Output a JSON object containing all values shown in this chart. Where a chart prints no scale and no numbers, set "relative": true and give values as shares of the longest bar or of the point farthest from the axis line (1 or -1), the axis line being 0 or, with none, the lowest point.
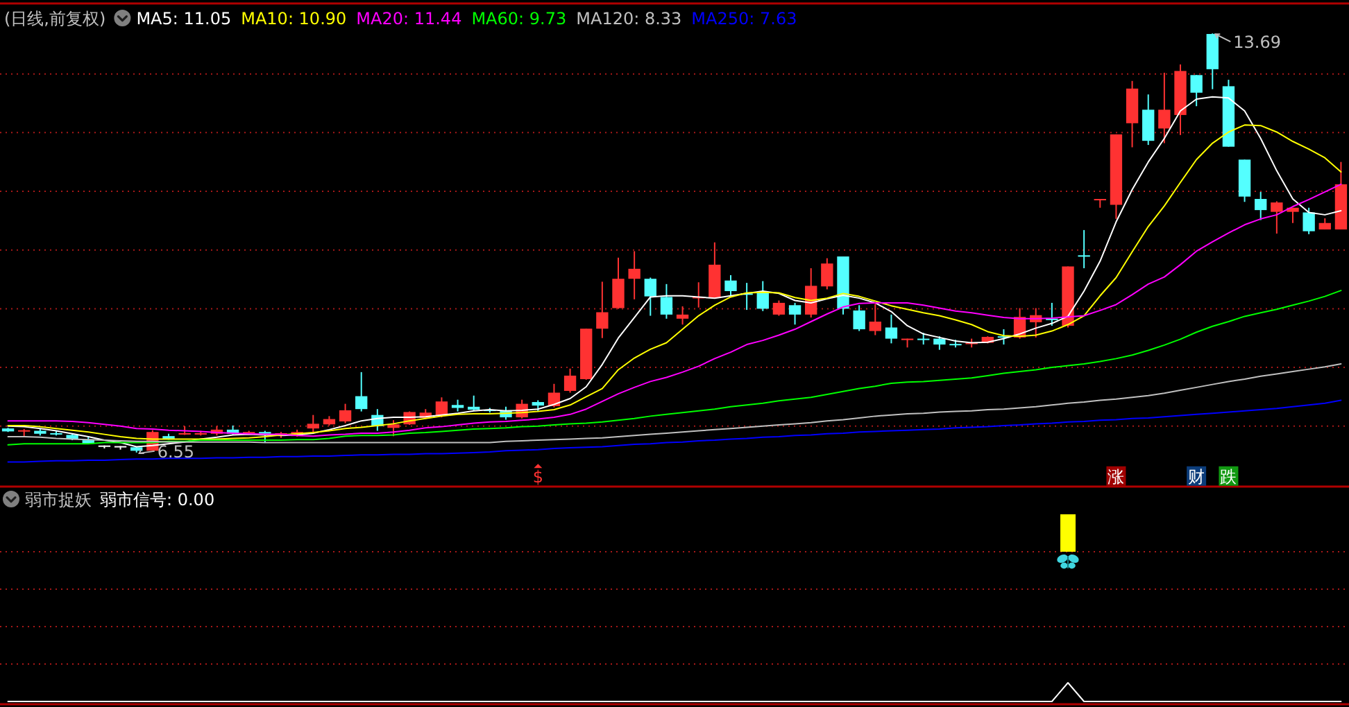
{
  "chart_data": [
    {
      "type": "candlestick",
      "title": "(日线,前复权)",
      "legend": "top left",
      "grid": "y",
      "categories": [
        null,
        null,
        null,
        null,
        null,
        null,
        null,
        null,
        null,
        null,
        null,
        null,
        null,
        null,
        null,
        null,
        null,
        null,
        null,
        null,
        null,
        null,
        null,
        null,
        null,
        null,
        null,
        null,
        null,
        null,
        null,
        null,
        null,
        null,
        null,
        null,
        null,
        null,
        null,
        null,
        null,
        null,
        null,
        null,
        null,
        null,
        null,
        null,
        null,
        null,
        null,
        null,
        null,
        null,
        null,
        null,
        null,
        null,
        null,
        null,
        null,
        null,
        null,
        null,
        null,
        null,
        null,
        null,
        null,
        null,
        null,
        null,
        null,
        null,
        null,
        null,
        null,
        null,
        null,
        null,
        null,
        null,
        null,
        null
      ],
      "ylim": [
        5.97,
        14.2
      ],
      "yticks": [
        {
          "value": 7,
          "label": null
        },
        {
          "value": 8,
          "label": null
        },
        {
          "value": 9,
          "label": null
        },
        {
          "value": 10,
          "label": null
        },
        {
          "value": 11,
          "label": null
        },
        {
          "value": 12,
          "label": null
        },
        {
          "value": 13,
          "label": null
        }
      ],
      "ohlc": [
        [
          6.96,
          6.97,
          6.9,
          6.91
        ],
        [
          6.92,
          6.95,
          6.83,
          6.93
        ],
        [
          6.92,
          6.95,
          6.84,
          6.87
        ],
        [
          6.88,
          6.92,
          6.84,
          6.87
        ],
        [
          6.85,
          6.87,
          6.76,
          6.78
        ],
        [
          6.76,
          6.83,
          6.69,
          6.7
        ],
        [
          6.67,
          6.67,
          6.62,
          6.67
        ],
        [
          6.66,
          6.66,
          6.6,
          6.66
        ],
        [
          6.64,
          6.65,
          6.55,
          6.58
        ],
        [
          6.58,
          6.93,
          6.58,
          6.9
        ],
        [
          6.83,
          6.87,
          6.77,
          6.78
        ],
        [
          6.87,
          7.0,
          6.85,
          6.88
        ],
        [
          6.87,
          6.92,
          6.84,
          6.88
        ],
        [
          6.87,
          7.0,
          6.84,
          6.94
        ],
        [
          6.94,
          7.01,
          6.86,
          6.87
        ],
        [
          6.87,
          6.92,
          6.86,
          6.9
        ],
        [
          6.9,
          6.92,
          6.72,
          6.87
        ],
        [
          6.87,
          6.9,
          6.8,
          6.88
        ],
        [
          6.83,
          6.94,
          6.82,
          6.9
        ],
        [
          6.96,
          7.19,
          6.88,
          7.04
        ],
        [
          7.03,
          7.17,
          7.01,
          7.12
        ],
        [
          7.08,
          7.38,
          7.05,
          7.27
        ],
        [
          7.51,
          7.92,
          7.25,
          7.29
        ],
        [
          7.19,
          7.29,
          6.92,
          7.0
        ],
        [
          6.97,
          7.1,
          6.83,
          7.03
        ],
        [
          7.03,
          7.25,
          7.02,
          7.24
        ],
        [
          7.14,
          7.29,
          7.12,
          7.23
        ],
        [
          7.18,
          7.49,
          7.15,
          7.42
        ],
        [
          7.36,
          7.45,
          7.25,
          7.31
        ],
        [
          7.33,
          7.52,
          7.27,
          7.28
        ],
        [
          7.28,
          7.31,
          7.23,
          7.27
        ],
        [
          7.27,
          7.33,
          7.11,
          7.15
        ],
        [
          7.15,
          7.45,
          7.13,
          7.38
        ],
        [
          7.41,
          7.44,
          7.25,
          7.35
        ],
        [
          7.34,
          7.72,
          7.32,
          7.57
        ],
        [
          7.6,
          7.98,
          7.57,
          7.86
        ],
        [
          7.8,
          8.66,
          7.79,
          8.66
        ],
        [
          8.66,
          9.46,
          8.5,
          8.94
        ],
        [
          9.01,
          9.87,
          9.0,
          9.51
        ],
        [
          9.51,
          9.98,
          9.16,
          9.68
        ],
        [
          9.51,
          9.53,
          8.88,
          9.21
        ],
        [
          9.2,
          9.42,
          8.83,
          8.9
        ],
        [
          8.83,
          9.04,
          8.73,
          8.9
        ],
        [
          9.18,
          9.45,
          9.02,
          9.2
        ],
        [
          9.18,
          10.13,
          9.18,
          9.75
        ],
        [
          9.48,
          9.57,
          9.22,
          9.3
        ],
        [
          9.26,
          9.44,
          8.98,
          9.25
        ],
        [
          9.27,
          9.47,
          8.96,
          9.0
        ],
        [
          8.9,
          9.14,
          8.88,
          9.1
        ],
        [
          9.06,
          9.1,
          8.73,
          8.9
        ],
        [
          8.9,
          9.69,
          8.85,
          9.39
        ],
        [
          9.38,
          9.86,
          9.33,
          9.77
        ],
        [
          9.89,
          9.89,
          8.9,
          9.0
        ],
        [
          8.97,
          9.06,
          8.62,
          8.65
        ],
        [
          8.62,
          9.08,
          8.55,
          8.78
        ],
        [
          8.68,
          8.9,
          8.41,
          8.49
        ],
        [
          8.48,
          8.49,
          8.34,
          8.49
        ],
        [
          8.49,
          8.59,
          8.39,
          8.48
        ],
        [
          8.49,
          8.53,
          8.3,
          8.39
        ],
        [
          8.4,
          8.47,
          8.34,
          8.39
        ],
        [
          8.4,
          8.49,
          8.34,
          8.42
        ],
        [
          8.42,
          8.53,
          8.41,
          8.52
        ],
        [
          8.53,
          8.65,
          8.39,
          8.52
        ],
        [
          8.51,
          9.01,
          8.49,
          8.86
        ],
        [
          8.77,
          9.01,
          8.51,
          8.89
        ],
        [
          8.83,
          9.1,
          8.71,
          8.82
        ],
        [
          8.71,
          9.72,
          8.68,
          9.72
        ],
        [
          9.91,
          10.34,
          9.69,
          9.9
        ],
        [
          10.86,
          10.87,
          10.72,
          10.87
        ],
        [
          10.77,
          11.97,
          10.53,
          11.97
        ],
        [
          12.16,
          12.88,
          11.75,
          12.75
        ],
        [
          12.39,
          12.65,
          11.79,
          11.86
        ],
        [
          12.07,
          13.02,
          11.82,
          12.39
        ],
        [
          12.3,
          13.16,
          11.96,
          13.05
        ],
        [
          12.98,
          12.98,
          12.45,
          12.68
        ],
        [
          13.68,
          13.69,
          12.74,
          13.08
        ],
        [
          12.79,
          12.9,
          11.76,
          11.76
        ],
        [
          11.54,
          11.54,
          10.82,
          10.91
        ],
        [
          10.87,
          10.99,
          10.51,
          10.68
        ],
        [
          10.65,
          10.83,
          10.28,
          10.81
        ],
        [
          10.65,
          10.72,
          10.46,
          10.72
        ],
        [
          10.64,
          10.72,
          10.27,
          10.32
        ],
        [
          10.35,
          10.54,
          10.35,
          10.46
        ],
        [
          10.35,
          11.5,
          10.35,
          11.12
        ]
      ],
      "colors": [
        "#54ffff",
        "#ff3232",
        "#54ffff",
        "#54ffff",
        "#54ffff",
        "#54ffff",
        "#ffffff",
        "#ffffff",
        "#54ffff",
        "#ff3232",
        "#54ffff",
        "#ff3232",
        "#ff3232",
        "#ff3232",
        "#54ffff",
        "#ff3232",
        "#54ffff",
        "#ff3232",
        "#ff3232",
        "#ff3232",
        "#ff3232",
        "#ff3232",
        "#54ffff",
        "#54ffff",
        "#ff3232",
        "#ff3232",
        "#ff3232",
        "#ff3232",
        "#54ffff",
        "#54ffff",
        "#54ffff",
        "#54ffff",
        "#ff3232",
        "#54ffff",
        "#ff3232",
        "#ff3232",
        "#ff3232",
        "#ff3232",
        "#ff3232",
        "#ff3232",
        "#54ffff",
        "#54ffff",
        "#ff3232",
        "#ff3232",
        "#ff3232",
        "#54ffff",
        "#54ffff",
        "#54ffff",
        "#ff3232",
        "#54ffff",
        "#ff3232",
        "#ff3232",
        "#54ffff",
        "#54ffff",
        "#ff3232",
        "#54ffff",
        "#ff3232",
        "#54ffff",
        "#54ffff",
        "#54ffff",
        "#ff3232",
        "#ff3232",
        "#54ffff",
        "#ff3232",
        "#ff3232",
        "#54ffff",
        "#ff3232",
        "#54ffff",
        "#ff3232",
        "#ff3232",
        "#ff3232",
        "#54ffff",
        "#ff3232",
        "#ff3232",
        "#54ffff",
        "#54ffff",
        "#54ffff",
        "#54ffff",
        "#54ffff",
        "#ff3232",
        "#ff3232",
        "#54ffff",
        "#ff3232",
        "#ff3232"
      ],
      "annotations": [
        "13.69",
        "6.55"
      ],
      "series": [
        {
          "type": "line",
          "name": "MA5: 11.05",
          "color": "#ffffff",
          "values": [
            7.0,
            6.99,
            6.96,
            6.92,
            6.87,
            6.82,
            6.76,
            6.72,
            6.65,
            6.67,
            6.7,
            6.73,
            6.78,
            6.81,
            6.85,
            6.86,
            6.85,
            6.84,
            6.85,
            6.88,
            6.94,
            7.01,
            7.09,
            7.13,
            7.15,
            7.15,
            7.16,
            7.19,
            7.22,
            7.26,
            7.28,
            7.26,
            7.27,
            7.29,
            7.37,
            7.47,
            7.67,
            8.05,
            8.5,
            8.85,
            9.2,
            9.22,
            9.22,
            9.2,
            9.18,
            9.22,
            9.26,
            9.3,
            9.26,
            9.14,
            9.1,
            9.17,
            9.23,
            9.18,
            9.1,
            8.95,
            8.71,
            8.57,
            8.51,
            8.45,
            8.42,
            8.43,
            8.49,
            8.57,
            8.67,
            8.75,
            8.87,
            9.3,
            9.81,
            10.48,
            11.03,
            11.5,
            11.9,
            12.37,
            12.57,
            12.61,
            12.59,
            12.37,
            11.9,
            11.35,
            10.87,
            10.64,
            10.6,
            10.67
          ]
        },
        {
          "type": "line",
          "name": "MA10: 10.90",
          "color": "#ffff00",
          "values": [
            7.01,
            7.01,
            6.99,
            6.96,
            6.93,
            6.9,
            6.86,
            6.82,
            6.79,
            6.78,
            6.78,
            6.78,
            6.78,
            6.78,
            6.79,
            6.8,
            6.82,
            6.85,
            6.87,
            6.89,
            6.92,
            6.96,
            6.98,
            7.01,
            7.04,
            7.09,
            7.13,
            7.17,
            7.2,
            7.21,
            7.21,
            7.22,
            7.23,
            7.25,
            7.28,
            7.36,
            7.5,
            7.64,
            7.96,
            8.16,
            8.31,
            8.42,
            8.65,
            8.88,
            9.06,
            9.2,
            9.27,
            9.28,
            9.27,
            9.19,
            9.14,
            9.18,
            9.26,
            9.21,
            9.13,
            9.05,
            8.99,
            8.93,
            8.88,
            8.81,
            8.73,
            8.61,
            8.54,
            8.53,
            8.55,
            8.62,
            8.73,
            8.88,
            9.22,
            9.53,
            9.97,
            10.4,
            10.75,
            11.15,
            11.54,
            11.82,
            12.01,
            12.13,
            12.12,
            12.01,
            11.85,
            11.72,
            11.57,
            11.33
          ]
        },
        {
          "type": "line",
          "name": "MA20: 11.44",
          "color": "#ff00ff",
          "values": [
            7.09,
            7.09,
            7.09,
            7.09,
            7.08,
            7.06,
            7.03,
            7.0,
            6.96,
            6.95,
            6.93,
            6.92,
            6.91,
            6.89,
            6.88,
            6.87,
            6.86,
            6.86,
            6.84,
            6.83,
            6.85,
            6.86,
            6.88,
            6.88,
            6.9,
            6.93,
            6.97,
            6.99,
            7.02,
            7.05,
            7.07,
            7.08,
            7.1,
            7.12,
            7.15,
            7.2,
            7.29,
            7.42,
            7.55,
            7.66,
            7.76,
            7.83,
            7.92,
            8.02,
            8.15,
            8.26,
            8.39,
            8.46,
            8.55,
            8.65,
            8.78,
            8.91,
            9.03,
            9.09,
            9.1,
            9.1,
            9.1,
            9.06,
            9.01,
            8.96,
            8.93,
            8.89,
            8.85,
            8.83,
            8.83,
            8.84,
            8.86,
            8.88,
            8.97,
            9.07,
            9.24,
            9.42,
            9.54,
            9.75,
            9.98,
            10.14,
            10.29,
            10.43,
            10.53,
            10.6,
            10.74,
            10.86,
            10.99,
            11.12
          ]
        },
        {
          "type": "line",
          "name": "MA60: 9.73",
          "color": "#00ff00",
          "values": [
            6.68,
            6.7,
            6.7,
            6.7,
            6.7,
            6.7,
            6.72,
            6.72,
            6.72,
            6.72,
            6.74,
            6.74,
            6.76,
            6.76,
            6.76,
            6.76,
            6.76,
            6.76,
            6.77,
            6.77,
            6.79,
            6.83,
            6.84,
            6.84,
            6.85,
            6.88,
            6.89,
            6.91,
            6.93,
            6.95,
            6.96,
            6.97,
            6.99,
            7.0,
            7.02,
            7.04,
            7.05,
            7.07,
            7.1,
            7.13,
            7.17,
            7.2,
            7.23,
            7.26,
            7.29,
            7.33,
            7.36,
            7.39,
            7.43,
            7.46,
            7.49,
            7.54,
            7.59,
            7.64,
            7.68,
            7.73,
            7.75,
            7.76,
            7.78,
            7.8,
            7.82,
            7.86,
            7.9,
            7.93,
            7.96,
            8.0,
            8.03,
            8.06,
            8.1,
            8.15,
            8.21,
            8.29,
            8.38,
            8.48,
            8.6,
            8.7,
            8.78,
            8.87,
            8.93,
            8.99,
            9.06,
            9.13,
            9.21,
            9.31
          ]
        },
        {
          "type": "line",
          "name": "MA120: 8.33",
          "color": "#c0c0c0",
          "values": [
            6.82,
            6.82,
            6.81,
            6.79,
            6.78,
            6.77,
            6.76,
            6.75,
            6.74,
            6.74,
            6.73,
            6.73,
            6.73,
            6.73,
            6.73,
            6.73,
            6.72,
            6.72,
            6.72,
            6.72,
            6.72,
            6.72,
            6.72,
            6.72,
            6.72,
            6.72,
            6.72,
            6.72,
            6.72,
            6.72,
            6.72,
            6.74,
            6.75,
            6.76,
            6.77,
            6.78,
            6.79,
            6.8,
            6.82,
            6.84,
            6.86,
            6.88,
            6.9,
            6.92,
            6.94,
            6.96,
            6.98,
            7.0,
            7.02,
            7.04,
            7.06,
            7.09,
            7.11,
            7.14,
            7.17,
            7.19,
            7.21,
            7.22,
            7.24,
            7.25,
            7.26,
            7.28,
            7.29,
            7.31,
            7.33,
            7.36,
            7.39,
            7.41,
            7.44,
            7.46,
            7.49,
            7.52,
            7.56,
            7.61,
            7.66,
            7.71,
            7.76,
            7.8,
            7.85,
            7.89,
            7.93,
            7.97,
            8.01,
            8.06
          ]
        },
        {
          "type": "line",
          "name": "MA250: 7.63",
          "color": "#0000ff",
          "values": [
            6.39,
            6.39,
            6.4,
            6.41,
            6.41,
            6.42,
            6.42,
            6.43,
            6.44,
            6.44,
            6.45,
            6.45,
            6.45,
            6.46,
            6.46,
            6.47,
            6.47,
            6.48,
            6.48,
            6.49,
            6.49,
            6.5,
            6.51,
            6.51,
            6.52,
            6.52,
            6.53,
            6.53,
            6.54,
            6.55,
            6.56,
            6.58,
            6.59,
            6.6,
            6.62,
            6.63,
            6.64,
            6.65,
            6.67,
            6.69,
            6.7,
            6.72,
            6.73,
            6.75,
            6.76,
            6.78,
            6.79,
            6.81,
            6.82,
            6.84,
            6.85,
            6.87,
            6.88,
            6.9,
            6.91,
            6.92,
            6.93,
            6.94,
            6.95,
            6.97,
            6.98,
            6.99,
            7.01,
            7.02,
            7.04,
            7.05,
            7.07,
            7.08,
            7.1,
            7.11,
            7.13,
            7.14,
            7.16,
            7.18,
            7.2,
            7.22,
            7.24,
            7.26,
            7.28,
            7.3,
            7.33,
            7.36,
            7.39,
            7.44
          ]
        },
        {
          "type": "scatter",
          "marker": "triangle",
          "color": "#ff3232",
          "values": [
            null,
            null,
            null,
            null,
            null,
            null,
            null,
            null,
            null,
            null,
            null,
            null,
            null,
            null,
            null,
            null,
            null,
            null,
            null,
            null,
            null,
            null,
            null,
            null,
            null,
            null,
            null,
            null,
            null,
            null,
            null,
            null,
            null,
            6.32,
            null,
            null,
            null,
            null,
            null,
            null,
            null,
            null,
            null,
            null,
            null,
            null,
            null,
            null,
            null,
            null,
            null,
            null,
            null,
            null,
            null,
            null,
            null,
            null,
            null,
            null,
            null,
            null,
            null,
            null,
            null,
            null,
            null,
            null,
            null,
            null,
            null,
            null,
            null,
            null,
            null,
            null,
            null,
            null,
            null,
            null,
            null,
            null,
            null,
            null
          ],
          "value_labels": [
            null,
            null,
            null,
            null,
            null,
            null,
            null,
            null,
            null,
            null,
            null,
            null,
            null,
            null,
            null,
            null,
            null,
            null,
            null,
            null,
            null,
            null,
            null,
            null,
            null,
            null,
            null,
            null,
            null,
            null,
            null,
            null,
            null,
            "$",
            null,
            null,
            null,
            null,
            null,
            null,
            null,
            null,
            null,
            null,
            null,
            null,
            null,
            null,
            null,
            null,
            null,
            null,
            null,
            null,
            null,
            null,
            null,
            null,
            null,
            null,
            null,
            null,
            null,
            null,
            null,
            null,
            null,
            null,
            null,
            null,
            null,
            null,
            null,
            null,
            null,
            null,
            null,
            null,
            null,
            null,
            null,
            null,
            null,
            null
          ]
        },
        {
          "type": "scatter",
          "marker": "square",
          "values": [
            null,
            null,
            null,
            null,
            null,
            null,
            null,
            null,
            null,
            null,
            null,
            null,
            null,
            null,
            null,
            null,
            null,
            null,
            null,
            null,
            null,
            null,
            null,
            null,
            null,
            null,
            null,
            null,
            null,
            null,
            null,
            null,
            null,
            null,
            null,
            null,
            null,
            null,
            null,
            null,
            null,
            null,
            null,
            null,
            null,
            null,
            null,
            null,
            null,
            null,
            null,
            null,
            null,
            null,
            null,
            null,
            null,
            null,
            null,
            null,
            null,
            null,
            null,
            null,
            null,
            null,
            null,
            null,
            null,
            6.15,
            null,
            null,
            null,
            null,
            6.15,
            null,
            6.15,
            null,
            null,
            null,
            null,
            null,
            null,
            null
          ],
          "colors": [
            null,
            null,
            null,
            null,
            null,
            null,
            null,
            null,
            null,
            null,
            null,
            null,
            null,
            null,
            null,
            null,
            null,
            null,
            null,
            null,
            null,
            null,
            null,
            null,
            null,
            null,
            null,
            null,
            null,
            null,
            null,
            null,
            null,
            null,
            null,
            null,
            null,
            null,
            null,
            null,
            null,
            null,
            null,
            null,
            null,
            null,
            null,
            null,
            null,
            null,
            null,
            null,
            null,
            null,
            null,
            null,
            null,
            null,
            null,
            null,
            null,
            null,
            null,
            null,
            null,
            null,
            null,
            null,
            null,
            "#a00000",
            null,
            null,
            null,
            null,
            "#0b3c7a",
            null,
            "#119911",
            null,
            null,
            null,
            null,
            null,
            null,
            null
          ],
          "value_labels": [
            null,
            null,
            null,
            null,
            null,
            null,
            null,
            null,
            null,
            null,
            null,
            null,
            null,
            null,
            null,
            null,
            null,
            null,
            null,
            null,
            null,
            null,
            null,
            null,
            null,
            null,
            null,
            null,
            null,
            null,
            null,
            null,
            null,
            null,
            null,
            null,
            null,
            null,
            null,
            null,
            null,
            null,
            null,
            null,
            null,
            null,
            null,
            null,
            null,
            null,
            null,
            null,
            null,
            null,
            null,
            null,
            null,
            null,
            null,
            null,
            null,
            null,
            null,
            null,
            null,
            null,
            null,
            null,
            null,
            "涨",
            null,
            null,
            null,
            null,
            "财",
            null,
            "跌",
            null,
            null,
            null,
            null,
            null,
            null,
            null
          ]
        }
      ]
    },
    {
      "type": "line",
      "title": "弱市捉妖",
      "relative": true,
      "legend": "top left",
      "categories": [
        null,
        null,
        null,
        null,
        null,
        null,
        null,
        null,
        null,
        null,
        null,
        null,
        null,
        null,
        null,
        null,
        null,
        null,
        null,
        null,
        null,
        null,
        null,
        null,
        null,
        null,
        null,
        null,
        null,
        null,
        null,
        null,
        null,
        null,
        null,
        null,
        null,
        null,
        null,
        null,
        null,
        null,
        null,
        null,
        null,
        null,
        null,
        null,
        null,
        null,
        null,
        null,
        null,
        null,
        null,
        null,
        null,
        null,
        null,
        null,
        null,
        null,
        null,
        null,
        null,
        null,
        null,
        null,
        null,
        null,
        null,
        null,
        null,
        null,
        null,
        null,
        null,
        null,
        null,
        null,
        null,
        null,
        null,
        null
      ],
      "ref_lines": [
        {
          "axis": "y",
          "value": 2,
          "color": "#a81818",
          "line_style": "dotted"
        },
        {
          "axis": "y",
          "value": 4,
          "color": "#a81818",
          "line_style": "dotted"
        },
        {
          "axis": "y",
          "value": 6,
          "color": "#a81818",
          "line_style": "dotted"
        },
        {
          "axis": "y",
          "value": 8,
          "color": "#a81818",
          "line_style": "dotted"
        }
      ],
      "series": [
        {
          "type": "line",
          "name": "弱市信号: 0.00",
          "color": "#ffffff",
          "values": [
            0,
            0,
            0,
            0,
            0,
            0,
            0,
            0,
            0,
            0,
            0,
            0,
            0,
            0,
            0,
            0,
            0,
            0,
            0,
            0,
            0,
            0,
            0,
            0,
            0,
            0,
            0,
            0,
            0,
            0,
            0,
            0,
            0,
            0,
            0,
            0,
            0,
            0,
            0,
            0,
            0,
            0,
            0,
            0,
            0,
            0,
            0,
            0,
            0,
            0,
            0,
            0,
            0,
            0,
            0,
            0,
            0,
            0,
            0,
            0,
            0,
            0,
            0,
            0,
            0,
            0,
            1,
            0,
            0,
            0,
            0,
            0,
            0,
            0,
            0,
            0,
            0,
            0,
            0,
            0,
            0,
            0,
            0,
            0
          ]
        }
      ]
    }
  ]
}
